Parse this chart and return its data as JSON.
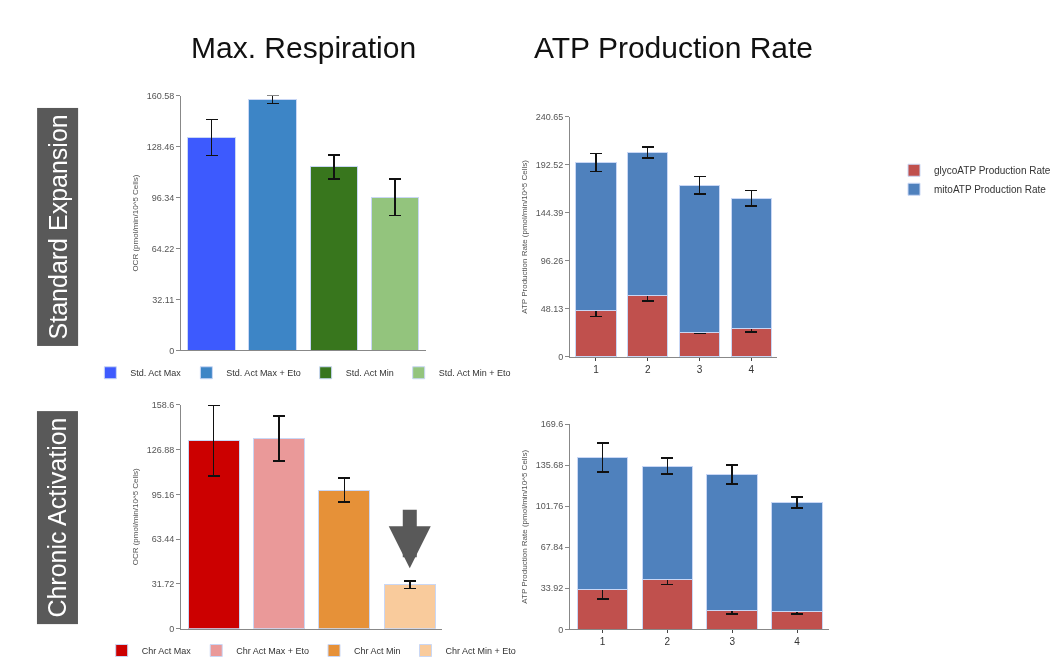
{
  "chart_data": [
    {
      "type": "bar",
      "title": "Max. Respiration",
      "ylabel": "OCR (pmol/min/10^5 Cells)",
      "annotations": [
        "Standard Expansion"
      ],
      "categories": [
        null,
        null,
        null,
        null
      ],
      "series": [
        {
          "name": "Std. Act Max",
          "color": "#3d5afe",
          "values": [
            134.2,
            null,
            null,
            null
          ],
          "errors": [
            11.3,
            null,
            null,
            null
          ]
        },
        {
          "name": "Std. Act Max + Eto",
          "color": "#3d85c6",
          "values": [
            null,
            158.1,
            null,
            null
          ],
          "errors": [
            null,
            2.5,
            null,
            null
          ]
        },
        {
          "name": "Std. Act Min",
          "color": "#38761d",
          "values": [
            null,
            null,
            115.6,
            null
          ],
          "errors": [
            null,
            null,
            7.5,
            null
          ]
        },
        {
          "name": "Std. Act Min + Eto",
          "color": "#93c47d",
          "values": [
            null,
            null,
            null,
            96.6
          ],
          "errors": [
            null,
            null,
            null,
            11.5
          ]
        }
      ],
      "ylim": [
        0,
        160.58
      ],
      "yticks": [
        0,
        32.11,
        64.22,
        96.34,
        128.46,
        160.58
      ],
      "legend": "bottom",
      "tick_labels": "y",
      "grid": false
    },
    {
      "type": "bar",
      "title": "ATP Production Rate",
      "ylabel": "ATP Production Rate (pmol/min/10^5 Cells)",
      "stacked": true,
      "categories": [
        "1",
        "2",
        "3",
        "4"
      ],
      "series": [
        {
          "name": "glycoATP Production Rate",
          "color": "#c0504d",
          "values": [
            47,
            62,
            25,
            29
          ],
          "errors": [
            6.3,
            6,
            1.6,
            4
          ]
        },
        {
          "name": "mitoATP Production Rate",
          "color": "#4f81bd",
          "values": [
            148,
            143,
            147,
            130
          ],
          "errors": [
            9,
            5.5,
            8.8,
            7.8
          ]
        }
      ],
      "ylim": [
        0,
        240.65
      ],
      "yticks": [
        0,
        48.13,
        96.26,
        144.39,
        192.52,
        240.65
      ],
      "legend": "right",
      "grid": false
    },
    {
      "type": "bar",
      "ylabel": "OCR (pmol/min/10^5 Cells)",
      "annotations": [
        "Chronic Activation"
      ],
      "categories": [
        null,
        null,
        null,
        null
      ],
      "series": [
        {
          "name": "Chr Act Max",
          "color": "#cc0000",
          "values": [
            133.1,
            null,
            null,
            null
          ],
          "errors": [
            25,
            null,
            null,
            null
          ]
        },
        {
          "name": "Chr Act Max + Eto",
          "color": "#ea9999",
          "values": [
            null,
            134.7,
            null,
            null
          ],
          "errors": [
            null,
            16,
            null,
            null
          ]
        },
        {
          "name": "Chr Act Min",
          "color": "#e69138",
          "values": [
            null,
            null,
            98.2,
            null
          ],
          "errors": [
            null,
            null,
            8.4,
            null
          ]
        },
        {
          "name": "Chr Act Min + Eto",
          "color": "#f9cb9c",
          "values": [
            null,
            null,
            null,
            31.2
          ],
          "errors": [
            null,
            null,
            null,
            2.7
          ]
        }
      ],
      "ylim": [
        0,
        158.6
      ],
      "yticks": [
        0,
        31.72,
        63.44,
        95.16,
        126.88,
        158.6
      ],
      "legend": "bottom",
      "tick_labels": "y",
      "grid": false
    },
    {
      "type": "bar",
      "ylabel": "ATP Production Rate (pmol/min/10^5 Cells)",
      "stacked": true,
      "categories": [
        "1",
        "2",
        "3",
        "4"
      ],
      "series": [
        {
          "color": "#c0504d",
          "values": [
            33,
            41,
            16,
            15
          ],
          "errors": [
            8,
            4,
            3.4,
            2.4
          ]
        },
        {
          "color": "#4f81bd",
          "values": [
            109,
            94,
            112,
            90
          ],
          "errors": [
            12,
            6.6,
            7.9,
            4.6
          ]
        }
      ],
      "ylim": [
        0,
        169.6
      ],
      "yticks": [
        0,
        33.92,
        67.84,
        101.76,
        135.68,
        169.6
      ],
      "grid": false
    }
  ]
}
